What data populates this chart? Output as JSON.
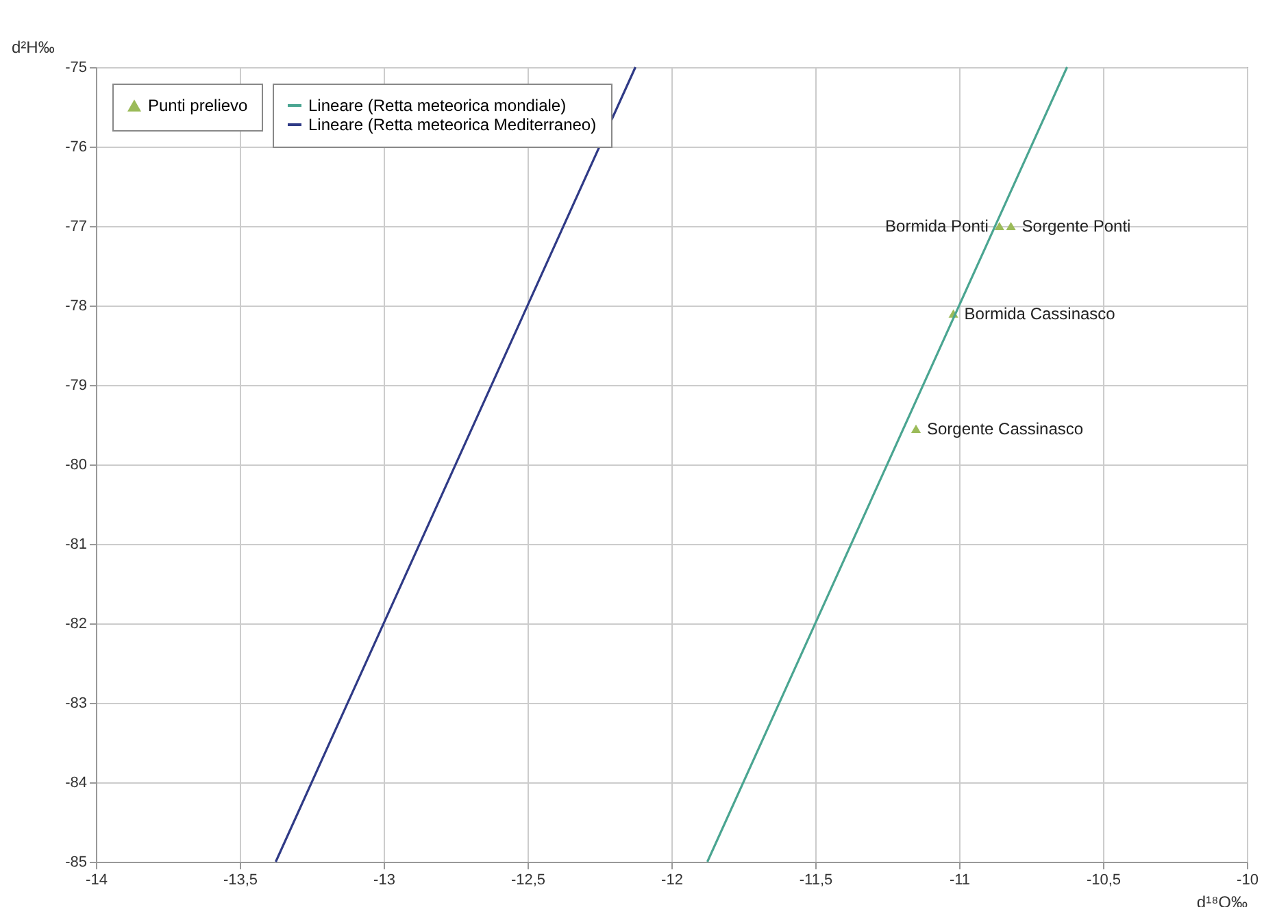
{
  "chart_data": {
    "type": "scatter",
    "xlabel": "d¹⁸O‰",
    "ylabel": "d²H‰",
    "series": [
      {
        "name": "Punti prelievo",
        "type": "scatter",
        "marker": "triangle",
        "color": "#9bbb59",
        "x": [
          -10.86,
          -10.82,
          -11.02,
          -11.15
        ],
        "values": [
          -77.0,
          -77.0,
          -78.1,
          -79.55
        ]
      },
      {
        "name": "Lineare (Retta meteorica mondiale)",
        "type": "line",
        "color": "#4aa591",
        "x": [
          -11.875,
          -10.625
        ],
        "values": [
          -85,
          -75
        ]
      },
      {
        "name": "Lineare (Retta meteorica Mediterraneo)",
        "type": "line",
        "color": "#2f3a86",
        "x": [
          -13.375,
          -12.125
        ],
        "values": [
          -85,
          -75
        ]
      }
    ],
    "annotations": [
      {
        "text": "Bormida Ponti",
        "x": -10.86,
        "y": -77.0
      },
      {
        "text": "Sorgente Ponti",
        "x": -10.82,
        "y": -77.0
      },
      {
        "text": "Bormida Cassinasco",
        "x": -11.02,
        "y": -78.1
      },
      {
        "text": "Sorgente Cassinasco",
        "x": -11.15,
        "y": -79.55
      }
    ],
    "xlim": [
      -14,
      -10
    ],
    "xticks": [
      -14,
      {
        "value": -13.5,
        "label": "-13,5"
      },
      -13,
      {
        "value": -12.5,
        "label": "-12,5"
      },
      -12,
      {
        "value": -11.5,
        "label": "-11,5"
      },
      -11,
      {
        "value": -10.5,
        "label": "-10,5"
      },
      -10
    ],
    "ylim": [
      -85,
      -75
    ],
    "yticks": [
      -85,
      -84,
      -83,
      -82,
      -81,
      -80,
      -79,
      -78,
      -77,
      -76,
      -75
    ],
    "grid": true,
    "legend": "top left"
  }
}
